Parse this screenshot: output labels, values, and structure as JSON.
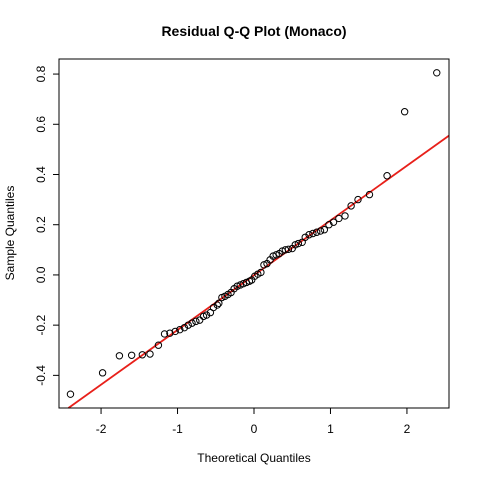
{
  "chart_data": {
    "type": "scatter",
    "title": "Residual Q-Q Plot (Monaco)",
    "xlabel": "Theoretical Quantiles",
    "ylabel": "Sample Quantiles",
    "xlim": [
      -2.55,
      2.55
    ],
    "ylim": [
      -0.53,
      0.86
    ],
    "xticks": [
      -2,
      -1,
      0,
      1,
      2
    ],
    "yticks": [
      -0.4,
      -0.2,
      0.0,
      0.2,
      0.4,
      0.6,
      0.8
    ],
    "xtick_labels": [
      "-2",
      "-1",
      "0",
      "1",
      "2"
    ],
    "ytick_labels": [
      "-0.4",
      "-0.2",
      "0.0",
      "0.2",
      "0.4",
      "0.6",
      "0.8"
    ],
    "grid": false,
    "reference_line": {
      "slope": 0.218,
      "intercept": -0.001,
      "color": "#e8201a"
    },
    "point_color": "#000000",
    "points": [
      [
        -2.4,
        -0.475
      ],
      [
        -1.98,
        -0.39
      ],
      [
        -1.76,
        -0.322
      ],
      [
        -1.6,
        -0.32
      ],
      [
        -1.46,
        -0.318
      ],
      [
        -1.36,
        -0.315
      ],
      [
        -1.25,
        -0.28
      ],
      [
        -1.17,
        -0.235
      ],
      [
        -1.1,
        -0.232
      ],
      [
        -1.03,
        -0.225
      ],
      [
        -0.97,
        -0.218
      ],
      [
        -0.91,
        -0.21
      ],
      [
        -0.86,
        -0.2
      ],
      [
        -0.81,
        -0.192
      ],
      [
        -0.76,
        -0.185
      ],
      [
        -0.71,
        -0.18
      ],
      [
        -0.66,
        -0.165
      ],
      [
        -0.62,
        -0.16
      ],
      [
        -0.57,
        -0.15
      ],
      [
        -0.53,
        -0.13
      ],
      [
        -0.48,
        -0.12
      ],
      [
        -0.46,
        -0.113
      ],
      [
        -0.42,
        -0.09
      ],
      [
        -0.38,
        -0.085
      ],
      [
        -0.34,
        -0.078
      ],
      [
        -0.3,
        -0.07
      ],
      [
        -0.26,
        -0.055
      ],
      [
        -0.22,
        -0.045
      ],
      [
        -0.18,
        -0.04
      ],
      [
        -0.14,
        -0.035
      ],
      [
        -0.1,
        -0.03
      ],
      [
        -0.06,
        -0.025
      ],
      [
        -0.03,
        -0.02
      ],
      [
        0.01,
        -0.005
      ],
      [
        0.05,
        0.003
      ],
      [
        0.09,
        0.01
      ],
      [
        0.13,
        0.04
      ],
      [
        0.17,
        0.045
      ],
      [
        0.21,
        0.06
      ],
      [
        0.25,
        0.075
      ],
      [
        0.29,
        0.08
      ],
      [
        0.33,
        0.085
      ],
      [
        0.37,
        0.095
      ],
      [
        0.41,
        0.1
      ],
      [
        0.45,
        0.102
      ],
      [
        0.5,
        0.105
      ],
      [
        0.54,
        0.12
      ],
      [
        0.58,
        0.125
      ],
      [
        0.63,
        0.13
      ],
      [
        0.67,
        0.15
      ],
      [
        0.72,
        0.16
      ],
      [
        0.77,
        0.165
      ],
      [
        0.82,
        0.17
      ],
      [
        0.87,
        0.175
      ],
      [
        0.92,
        0.18
      ],
      [
        0.98,
        0.2
      ],
      [
        1.04,
        0.21
      ],
      [
        1.11,
        0.225
      ],
      [
        1.19,
        0.235
      ],
      [
        1.27,
        0.275
      ],
      [
        1.36,
        0.3
      ],
      [
        1.51,
        0.32
      ],
      [
        1.74,
        0.395
      ],
      [
        1.97,
        0.65
      ],
      [
        2.39,
        0.805
      ]
    ]
  }
}
